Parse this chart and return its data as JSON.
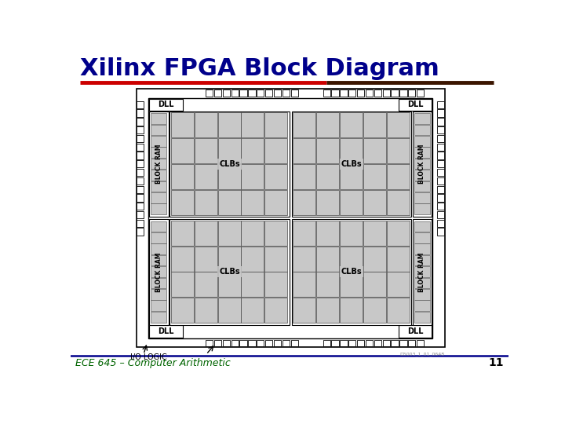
{
  "title": "Xilinx FPGA Block Diagram",
  "title_color": "#00008B",
  "title_fontsize": 22,
  "footer_text": "ECE 645 – Computer Arithmetic",
  "footer_color": "#006400",
  "footer_fontsize": 9,
  "page_number": "11",
  "bg_color": "#FFFFFF",
  "rule_color_red": "#CC0000",
  "rule_color_dark": "#3B1500",
  "footer_rule_color": "#00008B",
  "clbs_label": "CLBs",
  "dll_label": "DLL",
  "block_ram_label": "BLOCK RAM",
  "io_logic_label": "I/O LOGIC",
  "watermark": "D5003_1_01_0648",
  "cell_fill": "#C8C8C8",
  "cell_edge": "#444444",
  "white": "#FFFFFF",
  "black": "#000000"
}
